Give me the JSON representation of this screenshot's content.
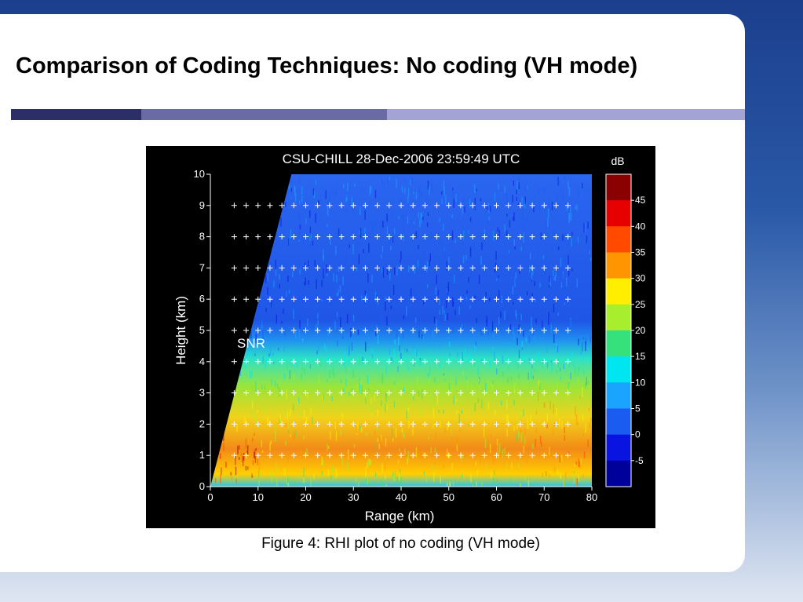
{
  "slide": {
    "title": "Comparison of Coding Techniques: No coding (VH mode)",
    "caption": "Figure 4: RHI plot of no coding (VH mode)"
  },
  "chart_data": {
    "type": "heatmap",
    "title": "CSU-CHILL  28-Dec-2006 23:59:49 UTC",
    "xlabel": "Range (km)",
    "ylabel": "Height (km)",
    "xlim": [
      0,
      80
    ],
    "ylim": [
      0,
      10
    ],
    "x_ticks": [
      0,
      10,
      20,
      30,
      40,
      50,
      60,
      70,
      80
    ],
    "y_ticks": [
      0,
      1,
      2,
      3,
      4,
      5,
      6,
      7,
      8,
      9,
      10
    ],
    "annotation": "SNR",
    "colorbar": {
      "unit": "dB",
      "ticks": [
        45,
        40,
        35,
        30,
        25,
        20,
        15,
        10,
        5,
        0,
        -5
      ],
      "colors": [
        "#8b0000",
        "#e60000",
        "#ff4a00",
        "#ff9500",
        "#ffee00",
        "#a6ee2e",
        "#36e07a",
        "#00e6f0",
        "#1aa3ff",
        "#1a5cf0",
        "#0a14e0",
        "#00009a"
      ]
    },
    "grid": true,
    "legend_position": "right",
    "description_profile": {
      "height_km": [
        0,
        1,
        2,
        3,
        4,
        5,
        6,
        7,
        8,
        9,
        10
      ],
      "approx_snr_db": [
        20,
        28,
        25,
        20,
        12,
        3,
        3,
        3,
        3,
        3,
        3
      ]
    },
    "beam_edge": {
      "x_km": [
        0,
        17
      ],
      "y_km": [
        0,
        10
      ]
    }
  }
}
